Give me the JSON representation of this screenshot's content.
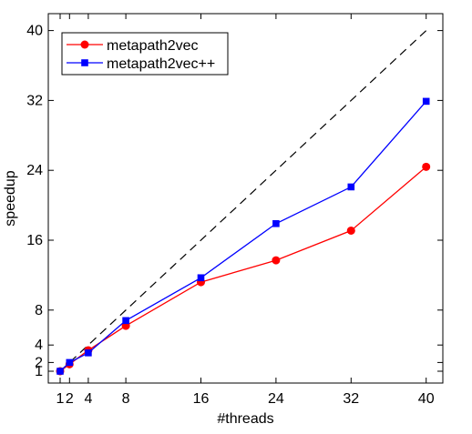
{
  "chart_data": {
    "type": "line",
    "xlabel": "#threads",
    "ylabel": "speedup",
    "x_ticks": [
      1,
      2,
      4,
      8,
      16,
      24,
      32,
      40
    ],
    "y_ticks": [
      1,
      2,
      4,
      8,
      16,
      24,
      32,
      40
    ],
    "x_tick_labels": [
      "1",
      "2",
      "4",
      "8",
      "16",
      "24",
      "32",
      "40"
    ],
    "y_tick_labels": [
      "1",
      "2",
      "4",
      "8",
      "16",
      "24",
      "32",
      "40"
    ],
    "xlim": [
      -0.5,
      41
    ],
    "ylim": [
      0,
      41
    ],
    "grid": false,
    "legend_position": "top-left",
    "reference_line": {
      "style": "dashed",
      "color": "#000000",
      "x": [
        1,
        40
      ],
      "y": [
        1,
        40
      ]
    },
    "series": [
      {
        "name": "metapath2vec",
        "color": "#ff0000",
        "marker": "circle",
        "x": [
          1,
          2,
          4,
          8,
          16,
          24,
          32,
          40
        ],
        "y": [
          1.0,
          1.8,
          3.4,
          6.2,
          11.2,
          13.7,
          17.1,
          24.4
        ]
      },
      {
        "name": "metapath2vec++",
        "color": "#0000ff",
        "marker": "square",
        "x": [
          1,
          2,
          4,
          8,
          16,
          24,
          32,
          40
        ],
        "y": [
          1.0,
          2.0,
          3.1,
          6.8,
          11.7,
          17.9,
          22.1,
          31.9
        ]
      }
    ]
  }
}
